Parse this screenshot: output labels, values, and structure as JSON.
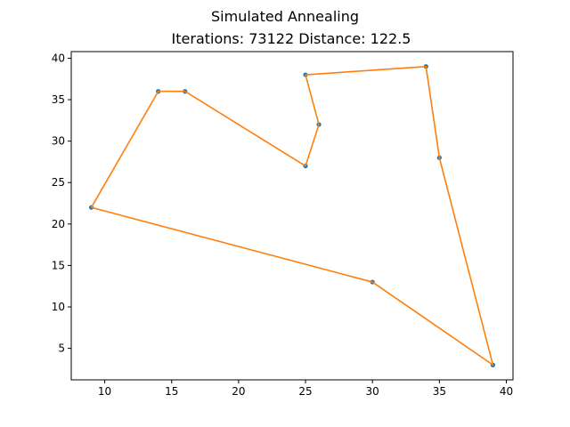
{
  "chart_data": {
    "type": "line",
    "title": "Simulated Annealing",
    "subtitle": "Iterations: 73122 Distance: 122.5",
    "xlabel": "",
    "ylabel": "",
    "xlim": [
      7.5,
      40.5
    ],
    "ylim": [
      1.2,
      40.8
    ],
    "xticks": [
      10,
      15,
      20,
      25,
      30,
      35,
      40
    ],
    "yticks": [
      5,
      10,
      15,
      20,
      25,
      30,
      35,
      40
    ],
    "grid": false,
    "series": [
      {
        "kind": "scatter",
        "color": "#1f77b4",
        "points": [
          [
            9,
            22
          ],
          [
            14,
            36
          ],
          [
            16,
            36
          ],
          [
            25,
            27
          ],
          [
            26,
            32
          ],
          [
            25,
            38
          ],
          [
            34,
            39
          ],
          [
            35,
            28
          ],
          [
            39,
            3
          ],
          [
            30,
            13
          ]
        ]
      },
      {
        "kind": "line",
        "color": "#ff7f0e",
        "points": [
          [
            9,
            22
          ],
          [
            14,
            36
          ],
          [
            16,
            36
          ],
          [
            25,
            27
          ],
          [
            26,
            32
          ],
          [
            25,
            38
          ],
          [
            34,
            39
          ],
          [
            35,
            28
          ],
          [
            39,
            3
          ],
          [
            30,
            13
          ],
          [
            9,
            22
          ]
        ]
      }
    ]
  }
}
